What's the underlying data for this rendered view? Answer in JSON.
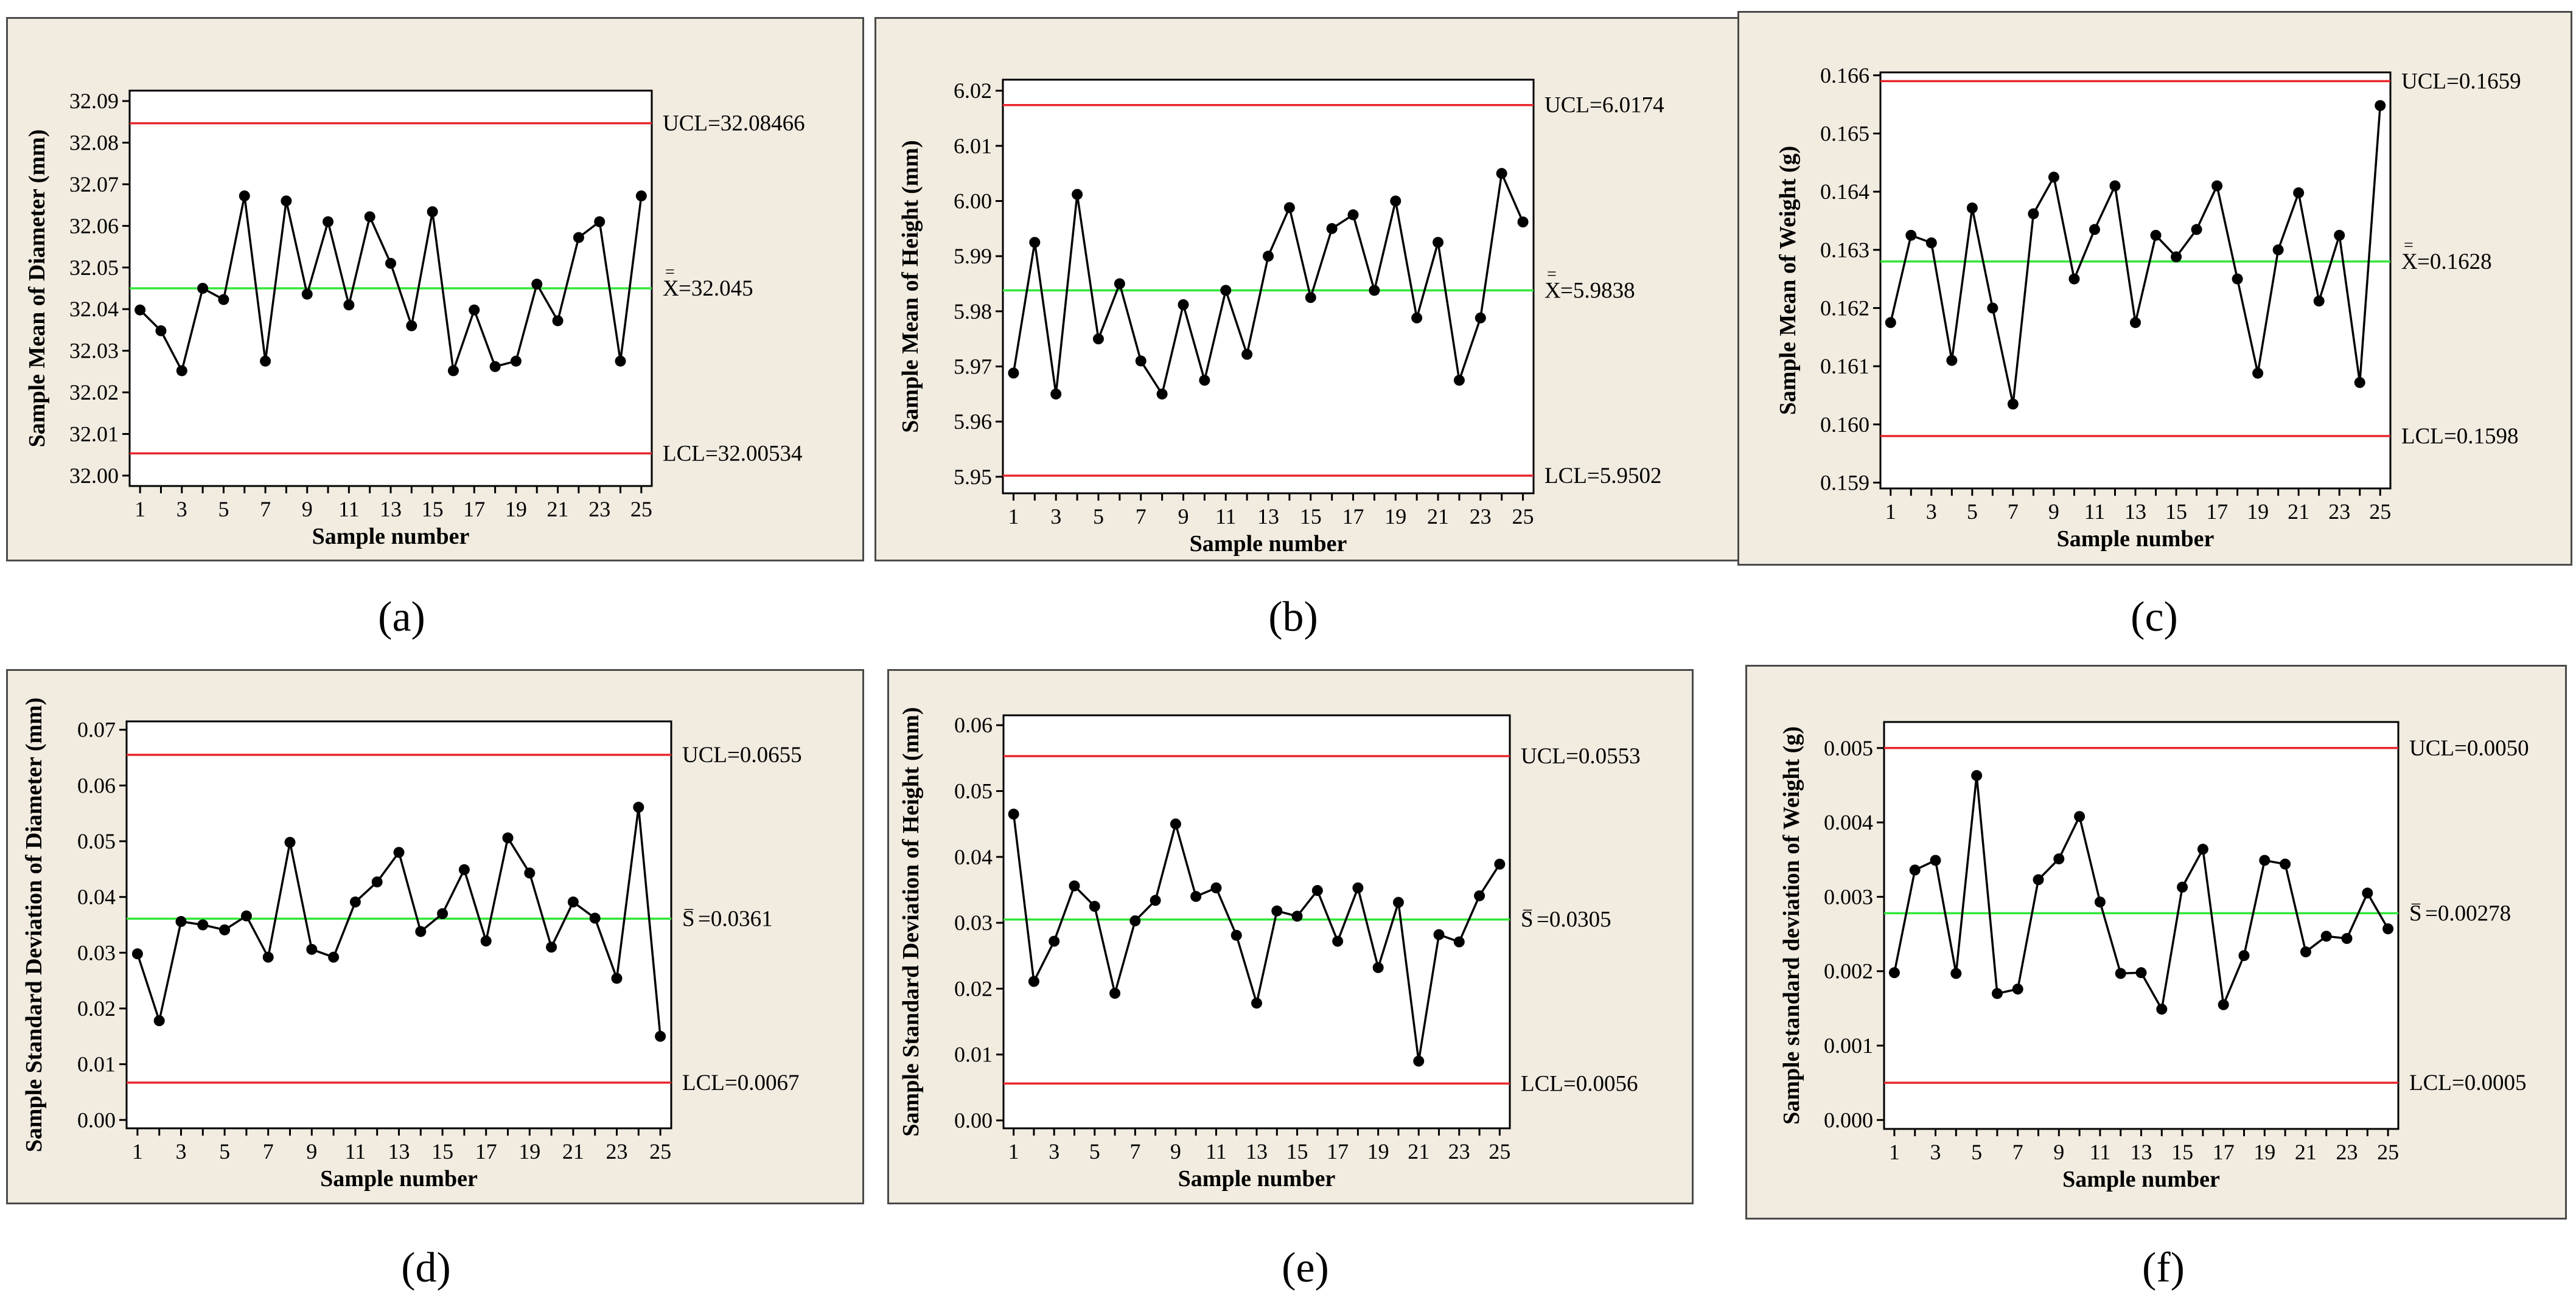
{
  "figure": {
    "captions": [
      "(a)",
      "(b)",
      "(c)",
      "(d)",
      "(e)",
      "(f)"
    ]
  },
  "colors": {
    "ucl_lcl": "#e8262c",
    "center": "#33e63a",
    "series": "#000000",
    "panel_bg": "#f1ebe0"
  },
  "chart_data": [
    {
      "type": "line",
      "id": "a",
      "title": "",
      "xlabel": "Sample number",
      "ylabel": "Sample Mean of Diameter (mm)",
      "x": [
        1,
        2,
        3,
        4,
        5,
        6,
        7,
        8,
        9,
        10,
        11,
        12,
        13,
        14,
        15,
        16,
        17,
        18,
        19,
        20,
        21,
        22,
        23,
        24,
        25
      ],
      "values": [
        32.0398,
        32.0348,
        32.0252,
        32.045,
        32.0423,
        32.0672,
        32.0275,
        32.066,
        32.0436,
        32.061,
        32.041,
        32.0622,
        32.051,
        32.036,
        32.0634,
        32.0252,
        32.0398,
        32.0262,
        32.0275,
        32.046,
        32.0372,
        32.0572,
        32.061,
        32.0275,
        32.0672
      ],
      "xticks": [
        1,
        3,
        5,
        7,
        9,
        11,
        13,
        15,
        17,
        19,
        21,
        23,
        25
      ],
      "yticks": [
        32.0,
        32.01,
        32.02,
        32.03,
        32.04,
        32.05,
        32.06,
        32.07,
        32.08,
        32.09
      ],
      "ytick_labels": [
        "32.00",
        "32.01",
        "32.02",
        "32.03",
        "32.04",
        "32.05",
        "32.06",
        "32.07",
        "32.08",
        "32.09"
      ],
      "ylim": [
        31.9975,
        32.0925
      ],
      "ucl": 32.08466,
      "center": 32.045,
      "lcl": 32.00534,
      "ucl_label": "UCL=32.08466",
      "center_symbol": "X",
      "center_bar": "=",
      "center_label": "=32.045",
      "lcl_label": "LCL=32.00534"
    },
    {
      "type": "line",
      "id": "b",
      "title": "",
      "xlabel": "Sample number",
      "ylabel": "Sample Mean of Height (mm)",
      "x": [
        1,
        2,
        3,
        4,
        5,
        6,
        7,
        8,
        9,
        10,
        11,
        12,
        13,
        14,
        15,
        16,
        17,
        18,
        19,
        20,
        21,
        22,
        23,
        24,
        25
      ],
      "values": [
        5.9688,
        5.9925,
        5.965,
        6.0012,
        5.975,
        5.985,
        5.971,
        5.965,
        5.9812,
        5.9675,
        5.9838,
        5.9722,
        5.99,
        5.9988,
        5.9825,
        5.995,
        5.9975,
        5.9838,
        6.0,
        5.9788,
        5.9925,
        5.9675,
        5.9788,
        6.005,
        5.9962
      ],
      "xticks": [
        1,
        3,
        5,
        7,
        9,
        11,
        13,
        15,
        17,
        19,
        21,
        23,
        25
      ],
      "yticks": [
        5.95,
        5.96,
        5.97,
        5.98,
        5.99,
        6.0,
        6.01,
        6.02
      ],
      "ytick_labels": [
        "5.95",
        "5.96",
        "5.97",
        "5.98",
        "5.99",
        "6.00",
        "6.01",
        "6.02"
      ],
      "ylim": [
        5.947,
        6.022
      ],
      "ucl": 6.0174,
      "center": 5.9838,
      "lcl": 5.9502,
      "ucl_label": "UCL=6.0174",
      "center_symbol": "X",
      "center_bar": "=",
      "center_label": "=5.9838",
      "lcl_label": "LCL=5.9502"
    },
    {
      "type": "line",
      "id": "c",
      "title": "",
      "xlabel": "Sample number",
      "ylabel": "Sample Mean of Weight (g)",
      "x": [
        1,
        2,
        3,
        4,
        5,
        6,
        7,
        8,
        9,
        10,
        11,
        12,
        13,
        14,
        15,
        16,
        17,
        18,
        19,
        20,
        21,
        22,
        23,
        24,
        25
      ],
      "values": [
        0.16175,
        0.16325,
        0.16312,
        0.1611,
        0.16372,
        0.162,
        0.16035,
        0.16362,
        0.16425,
        0.1625,
        0.16335,
        0.1641,
        0.16175,
        0.16325,
        0.16288,
        0.16335,
        0.1641,
        0.1625,
        0.16088,
        0.163,
        0.16398,
        0.16212,
        0.16325,
        0.16072,
        0.16548
      ],
      "xticks": [
        1,
        3,
        5,
        7,
        9,
        11,
        13,
        15,
        17,
        19,
        21,
        23,
        25
      ],
      "yticks": [
        0.159,
        0.16,
        0.161,
        0.162,
        0.163,
        0.164,
        0.165,
        0.166
      ],
      "ytick_labels": [
        "0.159",
        "0.160",
        "0.161",
        "0.162",
        "0.163",
        "0.164",
        "0.165",
        "0.166"
      ],
      "ylim": [
        0.1589,
        0.16605
      ],
      "ucl": 0.1659,
      "center": 0.1628,
      "lcl": 0.1598,
      "ucl_label": "UCL=0.1659",
      "center_symbol": "X",
      "center_bar": "=",
      "center_label": "=0.1628",
      "lcl_label": "LCL=0.1598"
    },
    {
      "type": "line",
      "id": "d",
      "title": "",
      "xlabel": "Sample number",
      "ylabel": "Sample Standard Deviation of Diameter (mm)",
      "x": [
        1,
        2,
        3,
        4,
        5,
        6,
        7,
        8,
        9,
        10,
        11,
        12,
        13,
        14,
        15,
        16,
        17,
        18,
        19,
        20,
        21,
        22,
        23,
        24,
        25
      ],
      "values": [
        0.0298,
        0.0178,
        0.0356,
        0.035,
        0.0341,
        0.0366,
        0.0292,
        0.0498,
        0.0306,
        0.0292,
        0.0391,
        0.0427,
        0.048,
        0.0338,
        0.037,
        0.0449,
        0.0321,
        0.0506,
        0.0443,
        0.031,
        0.0391,
        0.0362,
        0.0254,
        0.0561,
        0.015
      ],
      "xticks": [
        1,
        3,
        5,
        7,
        9,
        11,
        13,
        15,
        17,
        19,
        21,
        23,
        25
      ],
      "yticks": [
        0.0,
        0.01,
        0.02,
        0.03,
        0.04,
        0.05,
        0.06,
        0.07
      ],
      "ytick_labels": [
        "0.00",
        "0.01",
        "0.02",
        "0.03",
        "0.04",
        "0.05",
        "0.06",
        "0.07"
      ],
      "ylim": [
        -0.0015,
        0.0715
      ],
      "ucl": 0.0655,
      "center": 0.0361,
      "lcl": 0.0067,
      "ucl_label": "UCL=0.0655",
      "center_symbol": "S",
      "center_bar": "_",
      "center_label": "=0.0361",
      "lcl_label": "LCL=0.0067"
    },
    {
      "type": "line",
      "id": "e",
      "title": "",
      "xlabel": "Sample number",
      "ylabel": "Sample Standard Deviation of Height (mm)",
      "x": [
        1,
        2,
        3,
        4,
        5,
        6,
        7,
        8,
        9,
        10,
        11,
        12,
        13,
        14,
        15,
        16,
        17,
        18,
        19,
        20,
        21,
        22,
        23,
        24,
        25
      ],
      "values": [
        0.0465,
        0.0211,
        0.0272,
        0.0356,
        0.0325,
        0.0193,
        0.0303,
        0.0334,
        0.045,
        0.034,
        0.0353,
        0.0281,
        0.0178,
        0.0318,
        0.031,
        0.0349,
        0.0272,
        0.0353,
        0.0232,
        0.0331,
        0.009,
        0.0282,
        0.0271,
        0.0341,
        0.0389
      ],
      "xticks": [
        1,
        3,
        5,
        7,
        9,
        11,
        13,
        15,
        17,
        19,
        21,
        23,
        25
      ],
      "yticks": [
        0.0,
        0.01,
        0.02,
        0.03,
        0.04,
        0.05,
        0.06
      ],
      "ytick_labels": [
        "0.00",
        "0.01",
        "0.02",
        "0.03",
        "0.04",
        "0.05",
        "0.06"
      ],
      "ylim": [
        -0.0012,
        0.0615
      ],
      "ucl": 0.0553,
      "center": 0.0305,
      "lcl": 0.0056,
      "ucl_label": "UCL=0.0553",
      "center_symbol": "S",
      "center_bar": "_",
      "center_label": "=0.0305",
      "lcl_label": "LCL=0.0056"
    },
    {
      "type": "line",
      "id": "f",
      "title": "",
      "xlabel": "Sample number",
      "ylabel": "Sample standard deviation of Weight (g)",
      "x": [
        1,
        2,
        3,
        4,
        5,
        6,
        7,
        8,
        9,
        10,
        11,
        12,
        13,
        14,
        15,
        16,
        17,
        18,
        19,
        20,
        21,
        22,
        23,
        24,
        25
      ],
      "values": [
        0.00198,
        0.00336,
        0.00349,
        0.00197,
        0.00463,
        0.0017,
        0.00176,
        0.00323,
        0.00351,
        0.00408,
        0.00293,
        0.00197,
        0.00198,
        0.00149,
        0.00313,
        0.00364,
        0.00155,
        0.00221,
        0.00349,
        0.00344,
        0.00226,
        0.00247,
        0.00244,
        0.00305,
        0.00257
      ],
      "xticks": [
        1,
        3,
        5,
        7,
        9,
        11,
        13,
        15,
        17,
        19,
        21,
        23,
        25
      ],
      "yticks": [
        0.0,
        0.001,
        0.002,
        0.003,
        0.004,
        0.005
      ],
      "ytick_labels": [
        "0.000",
        "0.001",
        "0.002",
        "0.003",
        "0.004",
        "0.005"
      ],
      "ylim": [
        -0.00012,
        0.00535
      ],
      "ucl": 0.005,
      "center": 0.00278,
      "lcl": 0.0005,
      "ucl_label": "UCL=0.0050",
      "center_symbol": "S",
      "center_bar": "_",
      "center_label": "=0.00278",
      "lcl_label": "LCL=0.0005"
    }
  ]
}
